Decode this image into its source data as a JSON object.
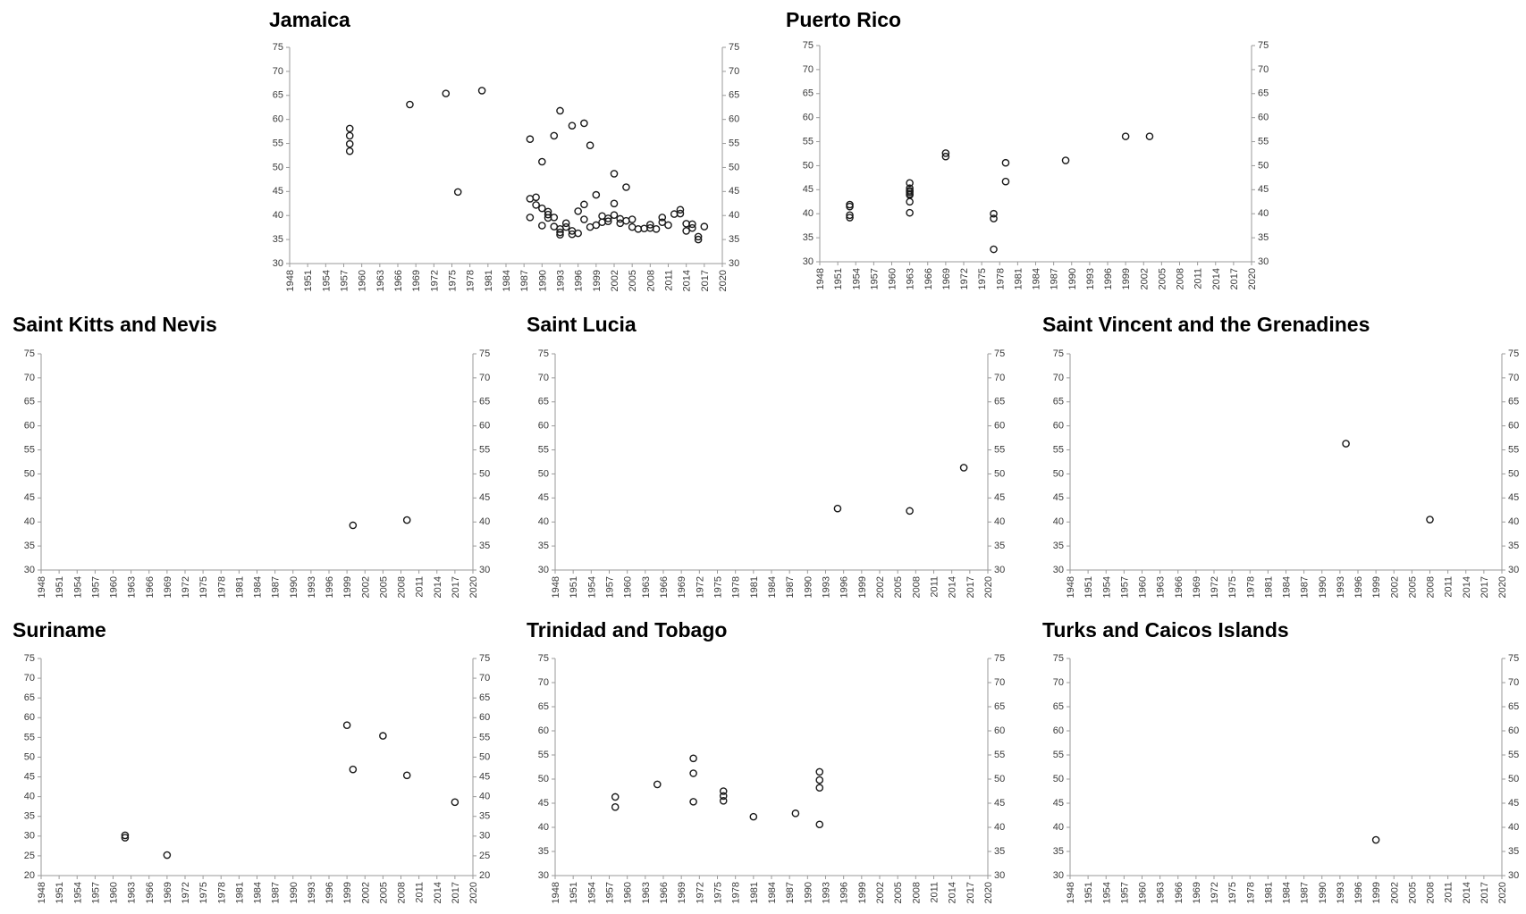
{
  "chart_data": [
    {
      "type": "scatter",
      "title": "Jamaica",
      "xlim": [
        1948,
        2020
      ],
      "ylim": [
        30,
        75
      ],
      "x_ticks": [
        1948,
        1951,
        1954,
        1957,
        1960,
        1963,
        1966,
        1969,
        1972,
        1975,
        1978,
        1981,
        1984,
        1987,
        1990,
        1993,
        1996,
        1999,
        2002,
        2005,
        2008,
        2011,
        2014,
        2017,
        2020
      ],
      "y_ticks": [
        30,
        35,
        40,
        45,
        50,
        55,
        60,
        65,
        70,
        75
      ],
      "points": [
        [
          1958,
          53.4
        ],
        [
          1958,
          54.9
        ],
        [
          1958,
          56.6
        ],
        [
          1958,
          58.1
        ],
        [
          1968,
          63.1
        ],
        [
          1974,
          65.4
        ],
        [
          1976,
          44.9
        ],
        [
          1980,
          66.0
        ],
        [
          1988,
          55.9
        ],
        [
          1988,
          43.5
        ],
        [
          1988,
          39.6
        ],
        [
          1989,
          43.8
        ],
        [
          1989,
          42.2
        ],
        [
          1990,
          51.2
        ],
        [
          1990,
          41.5
        ],
        [
          1990,
          37.9
        ],
        [
          1991,
          40.8
        ],
        [
          1991,
          40.2
        ],
        [
          1991,
          39.5
        ],
        [
          1992,
          56.6
        ],
        [
          1992,
          39.6
        ],
        [
          1992,
          37.7
        ],
        [
          1993,
          61.8
        ],
        [
          1993,
          37.2
        ],
        [
          1993,
          36.5
        ],
        [
          1993,
          36.0
        ],
        [
          1994,
          38.4
        ],
        [
          1994,
          37.6
        ],
        [
          1995,
          58.7
        ],
        [
          1995,
          36.8
        ],
        [
          1995,
          36.1
        ],
        [
          1996,
          40.9
        ],
        [
          1996,
          36.3
        ],
        [
          1997,
          59.2
        ],
        [
          1997,
          42.3
        ],
        [
          1997,
          39.2
        ],
        [
          1998,
          54.6
        ],
        [
          1998,
          37.6
        ],
        [
          1999,
          44.3
        ],
        [
          1999,
          38.0
        ],
        [
          2000,
          39.9
        ],
        [
          2000,
          38.6
        ],
        [
          2001,
          39.4
        ],
        [
          2001,
          38.8
        ],
        [
          2002,
          48.7
        ],
        [
          2002,
          42.5
        ],
        [
          2002,
          40.1
        ],
        [
          2003,
          39.3
        ],
        [
          2003,
          38.4
        ],
        [
          2004,
          45.9
        ],
        [
          2004,
          38.9
        ],
        [
          2005,
          39.2
        ],
        [
          2005,
          37.6
        ],
        [
          2006,
          37.2
        ],
        [
          2007,
          37.3
        ],
        [
          2008,
          38.1
        ],
        [
          2008,
          37.4
        ],
        [
          2009,
          37.2
        ],
        [
          2010,
          39.6
        ],
        [
          2010,
          38.6
        ],
        [
          2011,
          38.0
        ],
        [
          2012,
          40.3
        ],
        [
          2013,
          41.2
        ],
        [
          2013,
          40.4
        ],
        [
          2014,
          38.3
        ],
        [
          2014,
          36.8
        ],
        [
          2015,
          38.2
        ],
        [
          2015,
          37.4
        ],
        [
          2016,
          35.6
        ],
        [
          2016,
          35.0
        ],
        [
          2017,
          37.7
        ]
      ]
    },
    {
      "type": "scatter",
      "title": "Puerto Rico",
      "xlim": [
        1948,
        2020
      ],
      "ylim": [
        30,
        75
      ],
      "x_ticks": [
        1948,
        1951,
        1954,
        1957,
        1960,
        1963,
        1966,
        1969,
        1972,
        1975,
        1978,
        1981,
        1984,
        1987,
        1990,
        1993,
        1996,
        1999,
        2002,
        2005,
        2008,
        2011,
        2014,
        2017,
        2020
      ],
      "y_ticks": [
        30,
        35,
        40,
        45,
        50,
        55,
        60,
        65,
        70,
        75
      ],
      "points": [
        [
          1953,
          41.9
        ],
        [
          1953,
          41.5
        ],
        [
          1953,
          39.7
        ],
        [
          1953,
          39.2
        ],
        [
          1963,
          46.4
        ],
        [
          1963,
          45.3
        ],
        [
          1963,
          44.8
        ],
        [
          1963,
          44.5
        ],
        [
          1963,
          44.1
        ],
        [
          1963,
          43.9
        ],
        [
          1963,
          42.5
        ],
        [
          1963,
          40.2
        ],
        [
          1969,
          52.6
        ],
        [
          1969,
          51.9
        ],
        [
          1977,
          40.0
        ],
        [
          1977,
          39.0
        ],
        [
          1977,
          32.6
        ],
        [
          1979,
          50.6
        ],
        [
          1979,
          46.7
        ],
        [
          1989,
          51.1
        ],
        [
          1999,
          56.1
        ],
        [
          2003,
          56.1
        ]
      ]
    },
    {
      "type": "scatter",
      "title": "Saint Kitts and Nevis",
      "xlim": [
        1948,
        2020
      ],
      "ylim": [
        30,
        75
      ],
      "x_ticks": [
        1948,
        1951,
        1954,
        1957,
        1960,
        1963,
        1966,
        1969,
        1972,
        1975,
        1978,
        1981,
        1984,
        1987,
        1990,
        1993,
        1996,
        1999,
        2002,
        2005,
        2008,
        2011,
        2014,
        2017,
        2020
      ],
      "y_ticks": [
        30,
        35,
        40,
        45,
        50,
        55,
        60,
        65,
        70,
        75
      ],
      "points": [
        [
          2000,
          39.3
        ],
        [
          2009,
          40.4
        ]
      ]
    },
    {
      "type": "scatter",
      "title": "Saint Lucia",
      "xlim": [
        1948,
        2020
      ],
      "ylim": [
        30,
        75
      ],
      "x_ticks": [
        1948,
        1951,
        1954,
        1957,
        1960,
        1963,
        1966,
        1969,
        1972,
        1975,
        1978,
        1981,
        1984,
        1987,
        1990,
        1993,
        1996,
        1999,
        2002,
        2005,
        2008,
        2011,
        2014,
        2017,
        2020
      ],
      "y_ticks": [
        30,
        35,
        40,
        45,
        50,
        55,
        60,
        65,
        70,
        75
      ],
      "points": [
        [
          1995,
          42.8
        ],
        [
          2007,
          42.3
        ],
        [
          2016,
          51.3
        ]
      ]
    },
    {
      "type": "scatter",
      "title": "Saint Vincent and the Grenadines",
      "xlim": [
        1948,
        2020
      ],
      "ylim": [
        30,
        75
      ],
      "x_ticks": [
        1948,
        1951,
        1954,
        1957,
        1960,
        1963,
        1966,
        1969,
        1972,
        1975,
        1978,
        1981,
        1984,
        1987,
        1990,
        1993,
        1996,
        1999,
        2002,
        2005,
        2008,
        2011,
        2014,
        2017,
        2020
      ],
      "y_ticks": [
        30,
        35,
        40,
        45,
        50,
        55,
        60,
        65,
        70,
        75
      ],
      "points": [
        [
          1994,
          56.3
        ],
        [
          2008,
          40.5
        ]
      ]
    },
    {
      "type": "scatter",
      "title": "Suriname",
      "xlim": [
        1948,
        2020
      ],
      "ylim": [
        20,
        75
      ],
      "x_ticks": [
        1948,
        1951,
        1954,
        1957,
        1960,
        1963,
        1966,
        1969,
        1972,
        1975,
        1978,
        1981,
        1984,
        1987,
        1990,
        1993,
        1996,
        1999,
        2002,
        2005,
        2008,
        2011,
        2014,
        2017,
        2020
      ],
      "y_ticks": [
        20,
        25,
        30,
        35,
        40,
        45,
        50,
        55,
        60,
        65,
        70,
        75
      ],
      "points": [
        [
          1962,
          30.2
        ],
        [
          1962,
          29.6
        ],
        [
          1969,
          25.2
        ],
        [
          1999,
          58.1
        ],
        [
          2000,
          46.9
        ],
        [
          2005,
          55.4
        ],
        [
          2009,
          45.4
        ],
        [
          2017,
          38.6
        ]
      ]
    },
    {
      "type": "scatter",
      "title": "Trinidad and Tobago",
      "xlim": [
        1948,
        2020
      ],
      "ylim": [
        30,
        75
      ],
      "x_ticks": [
        1948,
        1951,
        1954,
        1957,
        1960,
        1963,
        1966,
        1969,
        1972,
        1975,
        1978,
        1981,
        1984,
        1987,
        1990,
        1993,
        1996,
        1999,
        2002,
        2005,
        2008,
        2011,
        2014,
        2017,
        2020
      ],
      "y_ticks": [
        30,
        35,
        40,
        45,
        50,
        55,
        60,
        65,
        70,
        75
      ],
      "points": [
        [
          1958,
          46.3
        ],
        [
          1958,
          44.2
        ],
        [
          1965,
          48.9
        ],
        [
          1971,
          54.3
        ],
        [
          1971,
          51.2
        ],
        [
          1971,
          45.3
        ],
        [
          1976,
          47.5
        ],
        [
          1976,
          46.5
        ],
        [
          1976,
          45.5
        ],
        [
          1981,
          42.2
        ],
        [
          1988,
          42.9
        ],
        [
          1992,
          51.5
        ],
        [
          1992,
          49.8
        ],
        [
          1992,
          48.2
        ],
        [
          1992,
          40.6
        ]
      ]
    },
    {
      "type": "scatter",
      "title": "Turks and Caicos Islands",
      "xlim": [
        1948,
        2020
      ],
      "ylim": [
        30,
        75
      ],
      "x_ticks": [
        1948,
        1951,
        1954,
        1957,
        1960,
        1963,
        1966,
        1969,
        1972,
        1975,
        1978,
        1981,
        1984,
        1987,
        1990,
        1993,
        1996,
        1999,
        2002,
        2005,
        2008,
        2011,
        2014,
        2017,
        2020
      ],
      "y_ticks": [
        30,
        35,
        40,
        45,
        50,
        55,
        60,
        65,
        70,
        75
      ],
      "points": [
        [
          1999,
          37.4
        ]
      ]
    }
  ]
}
